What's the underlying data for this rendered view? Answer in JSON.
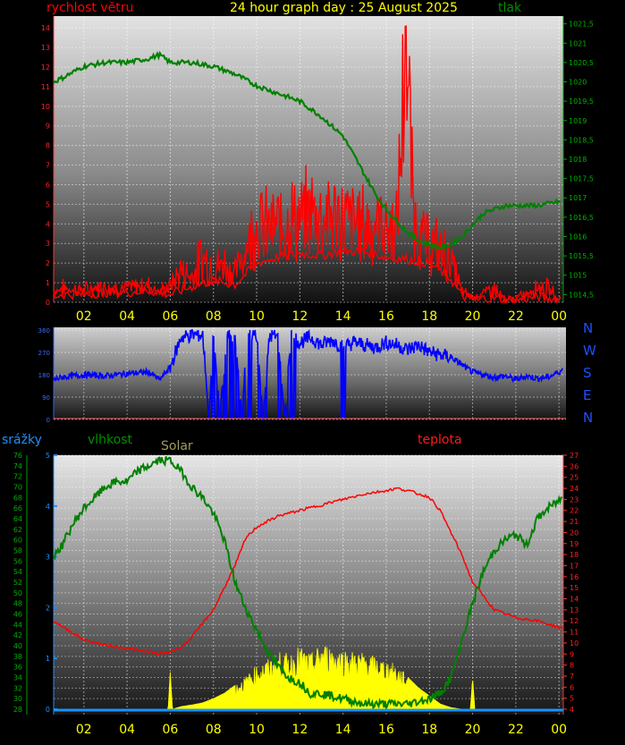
{
  "header": {
    "title": "24 hour graph day : 25 August 2025",
    "wind_label": "rychlost větru",
    "pressure_label": "tlak"
  },
  "direction_labels": [
    "N",
    "W",
    "S",
    "E",
    "N"
  ],
  "middle_labels": {
    "rain": "srážky",
    "humidity": "vlhkost",
    "solar": "Solar",
    "temperature": "teplota"
  },
  "colors": {
    "wind": "#ff0000",
    "pressure": "#008000",
    "direction": "#0000ff",
    "humidity": "#008000",
    "temperature": "#ff0000",
    "solar": "#ffff00",
    "rain": "#1e90ff",
    "title": "#ffff00"
  },
  "chart_data": [
    {
      "type": "line",
      "name": "wind-pressure",
      "x_ticks": [
        "02",
        "04",
        "06",
        "08",
        "10",
        "12",
        "14",
        "16",
        "18",
        "20",
        "22",
        "00"
      ],
      "left_ticks": [
        "0",
        "1",
        "2",
        "3",
        "4",
        "5",
        "6",
        "7",
        "8",
        "9",
        "10",
        "11",
        "12",
        "13",
        "14"
      ],
      "right_ticks": [
        "1014,5",
        "1015",
        "1015,5",
        "1016",
        "1016,5",
        "1017",
        "1017,5",
        "1018",
        "1018,5",
        "1019",
        "1019,5",
        "1020",
        "1020,5",
        "1021",
        "1021,5"
      ],
      "ylim_left": [
        0,
        14.6
      ],
      "ylim_right": [
        1014.3,
        1021.7
      ],
      "xlim": [
        0.6,
        24.2
      ],
      "series": [
        {
          "key": "gust",
          "axis": "left",
          "x": [
            0.6,
            1,
            2,
            3,
            4,
            5,
            5.5,
            6,
            6.5,
            7,
            7.5,
            8,
            8.5,
            9,
            9.5,
            10,
            10.5,
            11,
            11.5,
            12,
            12.5,
            13,
            13.5,
            14,
            14.5,
            15,
            15.5,
            16,
            16.5,
            16.9,
            17.3,
            17.7,
            18,
            18.5,
            19,
            19.5,
            20,
            20.5,
            21,
            21.5,
            22,
            22.5,
            23,
            23.5,
            24
          ],
          "y": [
            0.6,
            0.8,
            0.7,
            0.9,
            0.8,
            1.0,
            0.6,
            0.9,
            1.8,
            1.5,
            2.6,
            1.9,
            2.2,
            1.6,
            3.2,
            4.5,
            4.2,
            4.3,
            4.8,
            4.6,
            5.2,
            5.0,
            4.9,
            4.7,
            4.6,
            4.4,
            4.5,
            4.2,
            4.1,
            14.6,
            4.5,
            3.6,
            3.3,
            2.9,
            2.4,
            0.6,
            0.3,
            0.5,
            0.8,
            0.1,
            0.2,
            0.5,
            0.9,
            0.8,
            0.2
          ]
        },
        {
          "key": "wind_avg",
          "axis": "left",
          "x": [
            0.6,
            1,
            2,
            3,
            4,
            5,
            6,
            7,
            8,
            9,
            10,
            11,
            12,
            13,
            14,
            15,
            16,
            17,
            18,
            18.5,
            19,
            19.5,
            20,
            21,
            22,
            23,
            24
          ],
          "y": [
            0.3,
            0.4,
            0.4,
            0.5,
            0.5,
            0.6,
            0.4,
            0.8,
            1.1,
            0.9,
            2.0,
            2.3,
            2.5,
            2.4,
            2.6,
            2.6,
            2.3,
            2.2,
            2.0,
            1.6,
            1.2,
            0.3,
            0.2,
            0.2,
            0.1,
            0.3,
            0.1
          ]
        },
        {
          "key": "pressure",
          "axis": "right",
          "x": [
            0.6,
            1,
            2,
            3,
            4,
            5,
            5.5,
            6,
            7,
            8,
            9,
            10,
            11,
            12,
            13,
            14,
            14.5,
            15,
            15.5,
            16,
            16.5,
            17,
            17.5,
            18,
            18.5,
            19,
            19.5,
            20,
            20.5,
            21,
            21.5,
            22,
            23,
            24
          ],
          "y": [
            1020,
            1020.1,
            1020.4,
            1020.5,
            1020.5,
            1020.6,
            1020.7,
            1020.5,
            1020.5,
            1020.4,
            1020.2,
            1019.9,
            1019.7,
            1019.5,
            1019.1,
            1018.6,
            1018.1,
            1017.6,
            1017.1,
            1016.7,
            1016.4,
            1016.1,
            1015.9,
            1015.8,
            1015.7,
            1015.8,
            1016.0,
            1016.3,
            1016.6,
            1016.7,
            1016.8,
            1016.8,
            1016.8,
            1016.9
          ]
        }
      ]
    },
    {
      "type": "line",
      "name": "wind-direction",
      "left_ticks": [
        "0",
        "90",
        "180",
        "270",
        "360"
      ],
      "ylim": [
        0,
        360
      ],
      "xlim": [
        0.6,
        24.2
      ],
      "series": [
        {
          "key": "direction",
          "x": [
            0.6,
            1,
            2,
            3,
            4,
            5,
            5.5,
            6,
            6.5,
            7,
            7.5,
            7.8,
            8,
            8.3,
            8.6,
            9,
            9.3,
            9.6,
            10,
            10.3,
            10.6,
            11,
            11.3,
            11.6,
            12,
            12.5,
            13,
            13.5,
            14,
            14.5,
            15,
            15.5,
            16,
            16.5,
            17,
            17.5,
            18,
            18.5,
            19,
            19.5,
            20,
            20.5,
            21,
            21.5,
            22,
            22.5,
            23,
            23.5,
            24.2
          ],
          "y": [
            160,
            170,
            180,
            175,
            185,
            190,
            160,
            210,
            330,
            340,
            340,
            20,
            340,
            10,
            330,
            340,
            20,
            340,
            340,
            10,
            340,
            330,
            20,
            340,
            310,
            330,
            300,
            320,
            290,
            310,
            300,
            290,
            310,
            300,
            280,
            300,
            270,
            260,
            250,
            220,
            190,
            180,
            170,
            175,
            160,
            175,
            165,
            170,
            200
          ]
        }
      ]
    },
    {
      "type": "line",
      "name": "humidity-temperature-solar-rain",
      "x_ticks": [
        "02",
        "04",
        "06",
        "08",
        "10",
        "12",
        "14",
        "16",
        "18",
        "20",
        "22",
        "00"
      ],
      "humidity_ticks": [
        "28",
        "30",
        "32",
        "34",
        "36",
        "38",
        "40",
        "42",
        "44",
        "46",
        "48",
        "50",
        "52",
        "54",
        "56",
        "58",
        "60",
        "62",
        "64",
        "66",
        "68",
        "70",
        "72",
        "74",
        "76"
      ],
      "temperature_ticks": [
        "4",
        "5",
        "6",
        "7",
        "8",
        "9",
        "10",
        "11",
        "12",
        "13",
        "14",
        "15",
        "16",
        "17",
        "18",
        "19",
        "20",
        "21",
        "22",
        "23",
        "24",
        "25",
        "26",
        "27"
      ],
      "rain_ticks": [
        "0",
        "1",
        "2",
        "3",
        "4",
        "5"
      ],
      "ylim_humidity": [
        28,
        76
      ],
      "ylim_temperature": [
        4,
        27
      ],
      "ylim_rain": [
        0,
        5
      ],
      "xlim": [
        0.6,
        24.2
      ],
      "series": [
        {
          "key": "humidity",
          "axis": "humidity",
          "x": [
            0.6,
            1,
            1.5,
            2,
            2.5,
            3,
            3.5,
            4,
            4.5,
            5,
            5.5,
            6,
            6.5,
            7,
            7.5,
            8,
            8.5,
            9,
            9.5,
            10,
            10.5,
            11,
            11.5,
            12,
            12.5,
            13,
            14,
            15,
            16,
            17,
            18,
            18.5,
            19,
            19.5,
            20,
            20.5,
            21,
            21.5,
            22,
            22.5,
            23,
            23.5,
            24.2
          ],
          "y": [
            57,
            59,
            63,
            66,
            68,
            70,
            71,
            71,
            73,
            74,
            75,
            75,
            73,
            70,
            68,
            65,
            60,
            52,
            47,
            43,
            39,
            36,
            34,
            33,
            31,
            31,
            30,
            29,
            29,
            29,
            30,
            31,
            34,
            41,
            48,
            54,
            58,
            60,
            61,
            59,
            64,
            66,
            68
          ]
        },
        {
          "key": "temperature",
          "axis": "temperature",
          "x": [
            0.6,
            1,
            2,
            3,
            4,
            5,
            5.5,
            6,
            6.5,
            7,
            7.5,
            8,
            8.5,
            9,
            9.5,
            10,
            10.5,
            11,
            12,
            13,
            14,
            15,
            16,
            16.5,
            17,
            17.5,
            18,
            18.5,
            19,
            19.5,
            20,
            21,
            22,
            23,
            24.2
          ],
          "y": [
            12,
            11.5,
            10.3,
            9.8,
            9.5,
            9.2,
            9,
            9.2,
            9.6,
            10.5,
            11.8,
            13,
            15,
            17,
            19.5,
            20.5,
            21,
            21.5,
            22,
            22.5,
            23,
            23.5,
            23.8,
            24,
            23.8,
            23.5,
            23.2,
            22,
            20,
            18,
            15.5,
            13,
            12.3,
            12,
            11.3
          ]
        },
        {
          "key": "solar",
          "axis": "humidity_scaled",
          "x": [
            0.6,
            5.9,
            6.0,
            6.1,
            6.5,
            7,
            7.5,
            8,
            8.5,
            9,
            9.5,
            10,
            10.5,
            11,
            11.5,
            12,
            12.5,
            13,
            13.5,
            14,
            14.5,
            15,
            15.5,
            16,
            16.5,
            17,
            17.5,
            18,
            18.5,
            19,
            19.5,
            19.9,
            20,
            20.1,
            24.2
          ],
          "y": [
            0,
            0,
            7,
            0,
            0.5,
            0.8,
            1.2,
            2,
            3,
            4.5,
            6,
            8,
            9,
            10.5,
            10,
            11.5,
            10,
            12,
            11.5,
            11,
            10.5,
            10.5,
            9.5,
            9,
            8,
            6,
            4,
            2.5,
            1,
            0.3,
            0,
            0,
            6,
            0,
            0
          ]
        },
        {
          "key": "rain",
          "axis": "rain",
          "x": [
            0.6,
            24.2
          ],
          "y": [
            0,
            0
          ]
        }
      ]
    }
  ]
}
